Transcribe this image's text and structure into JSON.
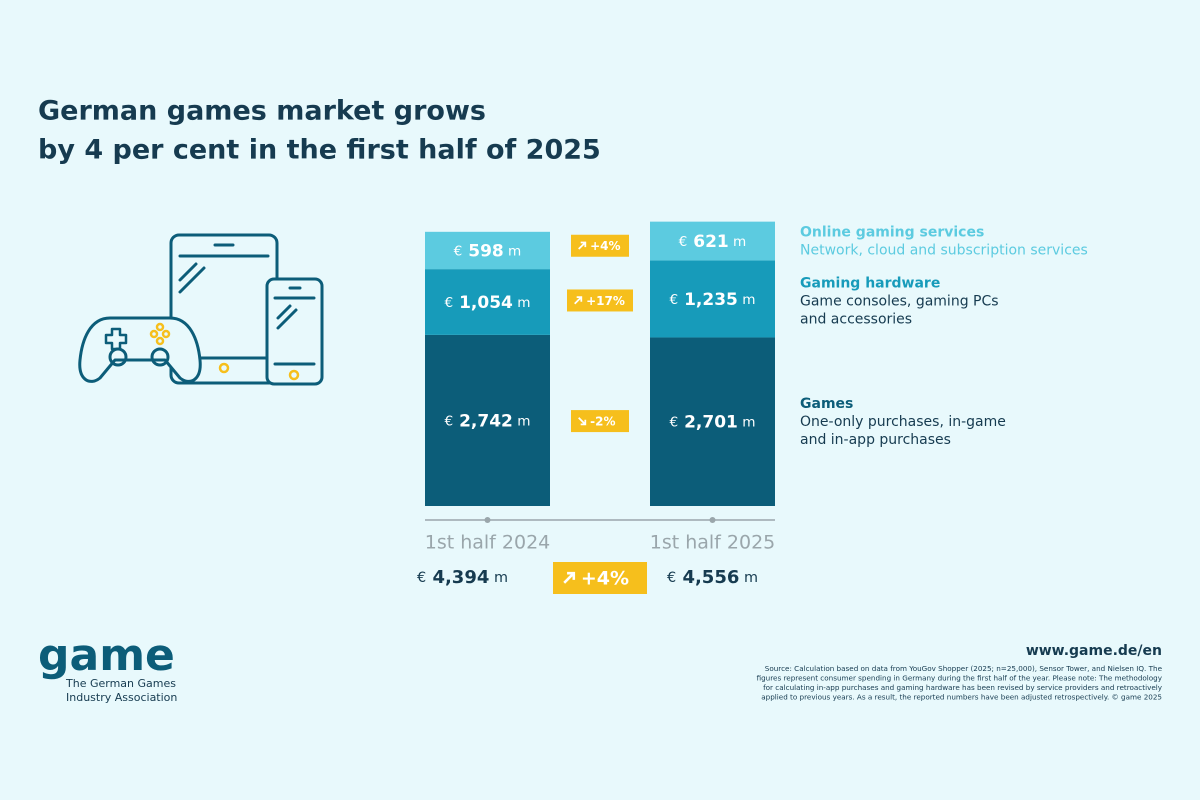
{
  "chart_data": {
    "type": "bar",
    "stacked": true,
    "title": [
      "German games market grows",
      "by 4 per cent in the first half of 2025"
    ],
    "categories": [
      "1st half 2024",
      "1st half 2025"
    ],
    "series": [
      {
        "name": "Games",
        "description": [
          "One-only purchases, in-game",
          "and in-app purchases"
        ],
        "color": "#0c5d79",
        "values": [
          2742,
          2701
        ],
        "value_labels": [
          "€ 2,742 m",
          "€ 2,701 m"
        ],
        "change": -2,
        "change_label": "-2%"
      },
      {
        "name": "Gaming hardware",
        "description": [
          "Game consoles, gaming PCs",
          "and accessories"
        ],
        "color": "#179bba",
        "values": [
          1054,
          1235
        ],
        "value_labels": [
          "€ 1,054 m",
          "€ 1,235 m"
        ],
        "change": 17,
        "change_label": "+17%"
      },
      {
        "name": "Online gaming services",
        "description": [
          "Network, cloud and subscription services"
        ],
        "color": "#5ccbe0",
        "values": [
          598,
          621
        ],
        "value_labels": [
          "€ 598 m",
          "€ 621 m"
        ],
        "change": 4,
        "change_label": "+4%"
      }
    ],
    "totals": {
      "values": [
        4394,
        4556
      ],
      "value_labels": [
        "€ 4,394 m",
        "€ 4,556 m"
      ],
      "change": 4,
      "change_label": "+4%"
    },
    "badge_color": "#f6bf1c"
  },
  "logo": {
    "name": "game",
    "tagline": [
      "The German Games",
      "Industry Association"
    ]
  },
  "url": "www.game.de/en",
  "source": [
    "Source: Calculation based on data from YouGov Shopper (2025; n=25,000), Sensor Tower, and Nielsen IQ. The",
    "figures represent consumer spending in Germany during the first half of the year. Please note: The methodology",
    "for calculating in-app purchases and gaming hardware has been revised by service providers and retroactively",
    "applied to previous years. As a result, the reported numbers have been adjusted retrospectively. © game 2025"
  ]
}
